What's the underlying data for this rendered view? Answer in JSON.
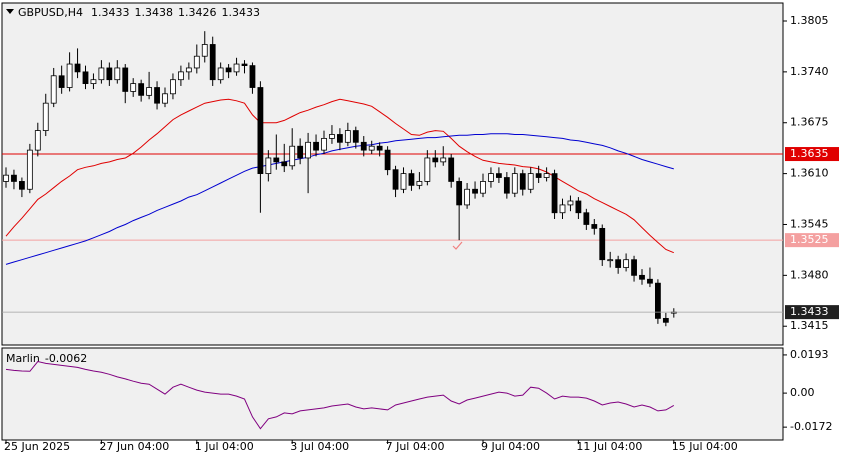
{
  "chart_data": [
    {
      "type": "candlestick",
      "title": "GBPUSD,H4",
      "categories": [
        "25 Jun 2025",
        null,
        null,
        null,
        null,
        null,
        null,
        null,
        null,
        null,
        null,
        null,
        "27 Jun 04:00",
        null,
        null,
        null,
        null,
        null,
        null,
        null,
        null,
        null,
        null,
        null,
        "1 Jul 04:00",
        null,
        null,
        null,
        null,
        null,
        null,
        null,
        null,
        null,
        null,
        null,
        "3 Jul 04:00",
        null,
        null,
        null,
        null,
        null,
        null,
        null,
        null,
        null,
        null,
        null,
        "7 Jul 04:00",
        null,
        null,
        null,
        null,
        null,
        null,
        null,
        null,
        null,
        null,
        null,
        "9 Jul 04:00",
        null,
        null,
        null,
        null,
        null,
        null,
        null,
        null,
        null,
        null,
        null,
        "11 Jul 04:00",
        null,
        null,
        null,
        null,
        null,
        null,
        null,
        null,
        null,
        null,
        null,
        "15 Jul 04:00"
      ],
      "open": [
        1.36,
        1.3608,
        1.36,
        1.359,
        1.364,
        1.3665,
        1.37,
        1.3735,
        1.372,
        1.375,
        1.374,
        1.3725,
        1.373,
        1.3745,
        1.373,
        1.3745,
        1.3715,
        1.3725,
        1.371,
        1.372,
        1.37,
        1.3712,
        1.373,
        1.374,
        1.3745,
        1.376,
        1.3775,
        1.373,
        1.3745,
        1.374,
        1.375,
        1.3748,
        1.372,
        1.361,
        1.363,
        1.3625,
        1.362,
        1.3645,
        1.363,
        1.365,
        1.364,
        1.3655,
        1.366,
        1.365,
        1.3665,
        1.365,
        1.364,
        1.3645,
        1.364,
        1.3615,
        1.359,
        1.361,
        1.3595,
        1.36,
        1.363,
        1.3625,
        1.363,
        1.36,
        1.357,
        1.359,
        1.3585,
        1.36,
        1.361,
        1.3605,
        1.3585,
        1.361,
        1.359,
        1.361,
        1.3605,
        1.361,
        1.356,
        1.357,
        1.3575,
        1.356,
        1.3545,
        1.354,
        1.35,
        1.35,
        1.349,
        1.35,
        1.348,
        1.3475,
        1.347,
        1.3425,
        1.3433
      ],
      "high": [
        1.3618,
        1.3615,
        1.3605,
        1.3648,
        1.3675,
        1.3712,
        1.3745,
        1.3748,
        1.3765,
        1.377,
        1.3748,
        1.3738,
        1.3755,
        1.3752,
        1.3755,
        1.375,
        1.3732,
        1.373,
        1.374,
        1.3728,
        1.372,
        1.3738,
        1.3748,
        1.3752,
        1.3775,
        1.3792,
        1.3785,
        1.3752,
        1.375,
        1.3758,
        1.3755,
        1.3752,
        1.3728,
        1.364,
        1.366,
        1.3648,
        1.3668,
        1.3655,
        1.3662,
        1.366,
        1.3665,
        1.3672,
        1.3668,
        1.3675,
        1.367,
        1.3658,
        1.3652,
        1.365,
        1.3645,
        1.362,
        1.3618,
        1.3615,
        1.3612,
        1.364,
        1.364,
        1.3645,
        1.3635,
        1.3605,
        1.3598,
        1.36,
        1.361,
        1.3618,
        1.3618,
        1.3612,
        1.3618,
        1.3615,
        1.3618,
        1.362,
        1.3618,
        1.3615,
        1.3578,
        1.3582,
        1.358,
        1.3565,
        1.3552,
        1.3545,
        1.351,
        1.3505,
        1.3508,
        1.3505,
        1.3488,
        1.349,
        1.3475,
        1.3432,
        1.3438
      ],
      "low": [
        1.3592,
        1.359,
        1.358,
        1.3585,
        1.3632,
        1.3658,
        1.3695,
        1.3712,
        1.3715,
        1.3732,
        1.3718,
        1.3718,
        1.3725,
        1.3722,
        1.3725,
        1.37,
        1.3708,
        1.3702,
        1.3705,
        1.3692,
        1.3695,
        1.3705,
        1.3722,
        1.373,
        1.3738,
        1.3752,
        1.3722,
        1.3725,
        1.3732,
        1.3735,
        1.3738,
        1.3712,
        1.356,
        1.36,
        1.3615,
        1.3612,
        1.3615,
        1.3622,
        1.3585,
        1.3632,
        1.3635,
        1.3648,
        1.364,
        1.3645,
        1.3642,
        1.3632,
        1.3635,
        1.3632,
        1.3608,
        1.358,
        1.3585,
        1.3588,
        1.359,
        1.3595,
        1.3618,
        1.362,
        1.3592,
        1.3525,
        1.3565,
        1.3578,
        1.358,
        1.3592,
        1.3598,
        1.3578,
        1.358,
        1.3582,
        1.3585,
        1.3598,
        1.36,
        1.3552,
        1.3552,
        1.3562,
        1.3552,
        1.3538,
        1.3532,
        1.3492,
        1.349,
        1.3482,
        1.3485,
        1.3472,
        1.3468,
        1.3465,
        1.3418,
        1.3415,
        1.3426
      ],
      "close": [
        1.3608,
        1.36,
        1.359,
        1.364,
        1.3665,
        1.37,
        1.3735,
        1.372,
        1.375,
        1.374,
        1.3725,
        1.373,
        1.3745,
        1.373,
        1.3745,
        1.3715,
        1.3725,
        1.371,
        1.372,
        1.37,
        1.3712,
        1.373,
        1.374,
        1.3745,
        1.376,
        1.3775,
        1.373,
        1.3745,
        1.374,
        1.375,
        1.3748,
        1.372,
        1.361,
        1.363,
        1.3625,
        1.362,
        1.3645,
        1.363,
        1.365,
        1.364,
        1.3655,
        1.366,
        1.365,
        1.3665,
        1.365,
        1.364,
        1.3645,
        1.364,
        1.3615,
        1.359,
        1.361,
        1.3595,
        1.36,
        1.363,
        1.3625,
        1.363,
        1.36,
        1.357,
        1.359,
        1.3585,
        1.36,
        1.361,
        1.3605,
        1.3585,
        1.361,
        1.359,
        1.361,
        1.3605,
        1.361,
        1.356,
        1.357,
        1.3575,
        1.356,
        1.3545,
        1.354,
        1.35,
        1.35,
        1.349,
        1.35,
        1.348,
        1.3475,
        1.347,
        1.3425,
        1.342,
        1.3433
      ],
      "up_color": "#ffffff",
      "down_color": "#000000",
      "lines": [
        {
          "color": "#e00000",
          "values": [
            1.353,
            1.3542,
            1.3553,
            1.3565,
            1.3577,
            1.3584,
            1.3592,
            1.36,
            1.3607,
            1.3615,
            1.3618,
            1.362,
            1.3623,
            1.3625,
            1.3628,
            1.363,
            1.3636,
            1.3644,
            1.3653,
            1.3661,
            1.367,
            1.3679,
            1.3685,
            1.369,
            1.3695,
            1.37,
            1.3702,
            1.3704,
            1.3705,
            1.3703,
            1.37,
            1.3685,
            1.3675,
            1.3675,
            1.3675,
            1.3678,
            1.3683,
            1.3688,
            1.3691,
            1.3695,
            1.3698,
            1.3702,
            1.3705,
            1.3703,
            1.3701,
            1.3699,
            1.3696,
            1.3689,
            1.3682,
            1.3674,
            1.3667,
            1.366,
            1.3659,
            1.3663,
            1.3665,
            1.3664,
            1.3655,
            1.3645,
            1.3638,
            1.3632,
            1.3627,
            1.3625,
            1.3623,
            1.3622,
            1.3621,
            1.3619,
            1.3618,
            1.3616,
            1.3612,
            1.3606,
            1.36,
            1.3594,
            1.3588,
            1.3584,
            1.3578,
            1.3573,
            1.3568,
            1.3563,
            1.3558,
            1.3551,
            1.3541,
            1.3531,
            1.3522,
            1.3513,
            1.3509
          ]
        },
        {
          "color": "#0000d0",
          "values": [
            1.3494,
            1.3497,
            1.35,
            1.3503,
            1.3506,
            1.3509,
            1.3512,
            1.3515,
            1.3518,
            1.3521,
            1.3524,
            1.3528,
            1.3532,
            1.3536,
            1.3541,
            1.3545,
            1.355,
            1.3554,
            1.3558,
            1.3563,
            1.3567,
            1.3571,
            1.3575,
            1.358,
            1.3583,
            1.3588,
            1.3593,
            1.3598,
            1.3603,
            1.3608,
            1.3613,
            1.3617,
            1.3619,
            1.3621,
            1.3623,
            1.3625,
            1.3627,
            1.3629,
            1.3631,
            1.3634,
            1.3636,
            1.3639,
            1.3641,
            1.3643,
            1.3645,
            1.3646,
            1.3647,
            1.3649,
            1.365,
            1.3652,
            1.3653,
            1.3654,
            1.3655,
            1.3656,
            1.3656,
            1.3657,
            1.3658,
            1.3659,
            1.3659,
            1.366,
            1.366,
            1.3661,
            1.3661,
            1.3661,
            1.366,
            1.366,
            1.3659,
            1.3658,
            1.3657,
            1.3656,
            1.3655,
            1.3653,
            1.3652,
            1.365,
            1.3648,
            1.3646,
            1.3643,
            1.3639,
            1.3636,
            1.3632,
            1.3628,
            1.3625,
            1.3622,
            1.3619,
            1.3616
          ]
        }
      ],
      "levels": [
        {
          "value": 1.3635,
          "color": "#e00000"
        },
        {
          "value": 1.3525,
          "color": "#f4a0a0"
        }
      ],
      "last_price_color": "#202020",
      "ylim": [
        1.3391,
        1.3828
      ],
      "yticks": [
        1.3805,
        {
          "value": 1.374,
          "label": "1.3740"
        },
        1.3675,
        {
          "value": 1.361,
          "label": "1.3610"
        },
        1.3545,
        {
          "value": 1.348,
          "label": "1.3480"
        },
        1.3415
      ]
    },
    {
      "type": "line",
      "title": "Marlin",
      "color": "#800080",
      "values": [
        0.012,
        0.0115,
        0.0112,
        0.011,
        0.016,
        0.015,
        0.0145,
        0.014,
        0.0135,
        0.013,
        0.012,
        0.0112,
        0.0105,
        0.0095,
        0.0082,
        0.0072,
        0.006,
        0.005,
        0.0045,
        0.002,
        -0.0005,
        0.003,
        0.0045,
        0.003,
        0.0015,
        0.0005,
        0.0,
        -0.0005,
        -0.0005,
        -0.0015,
        -0.003,
        -0.012,
        -0.018,
        -0.013,
        -0.012,
        -0.01,
        -0.0105,
        -0.009,
        -0.0085,
        -0.008,
        -0.0075,
        -0.0065,
        -0.006,
        -0.0055,
        -0.007,
        -0.008,
        -0.0075,
        -0.008,
        -0.0085,
        -0.006,
        -0.005,
        -0.004,
        -0.003,
        -0.002,
        -0.0015,
        -0.001,
        -0.004,
        -0.0055,
        -0.0035,
        -0.0025,
        -0.0015,
        -0.0005,
        0.0005,
        0.0,
        -0.0015,
        -0.001,
        0.003,
        0.0025,
        0.0,
        -0.003,
        -0.0015,
        -0.002,
        -0.002,
        -0.0025,
        -0.004,
        -0.006,
        -0.005,
        -0.0045,
        -0.0055,
        -0.007,
        -0.006,
        -0.007,
        -0.009,
        -0.0085,
        -0.0062
      ],
      "ylim": [
        -0.0237,
        0.0228
      ],
      "yticks": [
        0.0193,
        {
          "value": 0,
          "label": "0.00"
        },
        -0.0172
      ]
    }
  ]
}
